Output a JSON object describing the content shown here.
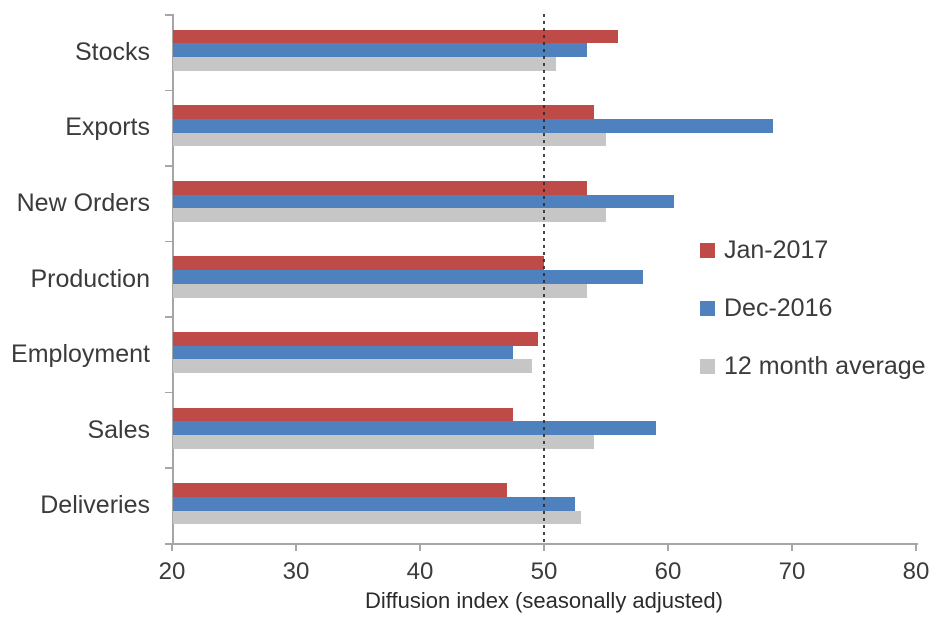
{
  "chart_data": {
    "type": "bar",
    "orientation": "horizontal",
    "title": "",
    "xlabel": "Diffusion index (seasonally adjusted)",
    "xlim": [
      20,
      80
    ],
    "xticks": [
      20,
      30,
      40,
      50,
      60,
      70,
      80
    ],
    "reference_line_x": 50,
    "grid": false,
    "legend_position": "right-inside",
    "categories": [
      "Stocks",
      "Exports",
      "New Orders",
      "Production",
      "Employment",
      "Sales",
      "Deliveries"
    ],
    "series": [
      {
        "name": "Jan-2017",
        "color": "#BE4B48",
        "values": [
          56,
          54,
          53.5,
          50,
          49.5,
          47.5,
          47
        ]
      },
      {
        "name": "Dec-2016",
        "color": "#4E81BD",
        "values": [
          53.5,
          68.5,
          60.5,
          58,
          47.5,
          59,
          52.5
        ]
      },
      {
        "name": "12 month average",
        "color": "#C6C6C6",
        "values": [
          51,
          55,
          55,
          53.5,
          49,
          54,
          53
        ]
      }
    ],
    "colors": {
      "axis": "#A6A6A6",
      "text": "#3B3B3B",
      "reference_line": "#2F2F2F",
      "background": "#FFFFFF"
    }
  }
}
